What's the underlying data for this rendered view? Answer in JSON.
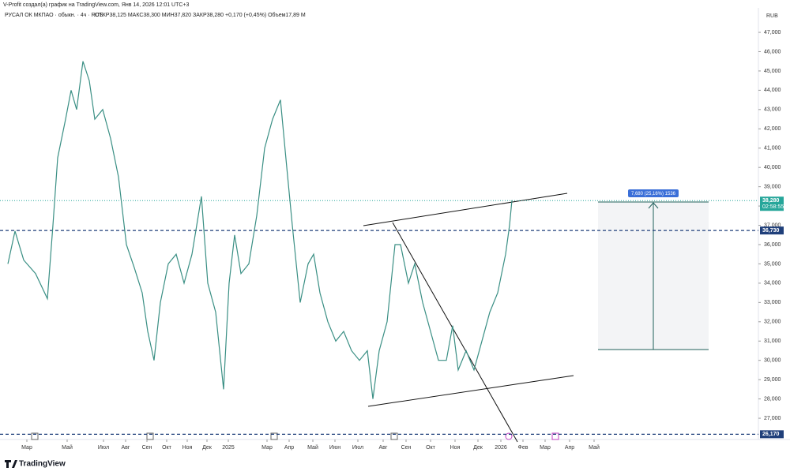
{
  "header": {
    "credit": "V-Profit создал(а) график на TradingView.com, Янв 14, 2026 12:01 UTC+3",
    "symbol": "РУСАЛ ОК МКПАО · обыкн. · 4ч · RUS",
    "ohlc": "ОТКР38,125  МАКС38,300  МИН37,820  ЗАКР38,280  +0,170 (+0,45%)  Объем17,89 M"
  },
  "chart_data": {
    "type": "line",
    "color": "#3a8f84",
    "currency": "RUB",
    "x": [
      5,
      14,
      25,
      40,
      55,
      62,
      68,
      78,
      85,
      92,
      100,
      108,
      115,
      125,
      135,
      145,
      155,
      165,
      175,
      182,
      190,
      198,
      208,
      218,
      228,
      238,
      250,
      258,
      268,
      278,
      285,
      292,
      300,
      310,
      320,
      330,
      340,
      350,
      358,
      365,
      375,
      385,
      392,
      400,
      410,
      420,
      430,
      440,
      450,
      460,
      467,
      475,
      485,
      495,
      502,
      512,
      520,
      530,
      540,
      550,
      560,
      568,
      575,
      585,
      595,
      605,
      615,
      625,
      635,
      640,
      643
    ],
    "values": [
      35000,
      36700,
      35200,
      34500,
      33200,
      37000,
      40500,
      42500,
      44000,
      43000,
      45500,
      44500,
      42500,
      43000,
      41500,
      39500,
      36000,
      34800,
      33500,
      31500,
      30000,
      33000,
      35000,
      35500,
      34000,
      35500,
      38500,
      34000,
      32500,
      28500,
      34000,
      36500,
      34500,
      35000,
      37500,
      41000,
      42500,
      43500,
      40000,
      37000,
      33000,
      35000,
      35500,
      33500,
      32000,
      31000,
      31500,
      30500,
      30000,
      30500,
      28000,
      30500,
      32000,
      36000,
      36000,
      34000,
      35000,
      33000,
      31500,
      30000,
      30000,
      31800,
      29500,
      30500,
      29500,
      31000,
      32500,
      33500,
      35500,
      37000,
      38300
    ],
    "xlim": [
      0,
      950
    ],
    "ylim": [
      25980,
      47860
    ],
    "yticks": [
      {
        "value": 27000,
        "label": "27,000"
      },
      {
        "value": 28000,
        "label": "28,000"
      },
      {
        "value": 29000,
        "label": "29,000"
      },
      {
        "value": 30000,
        "label": "30,000"
      },
      {
        "value": 31000,
        "label": "31,000"
      },
      {
        "value": 32000,
        "label": "32,000"
      },
      {
        "value": 33000,
        "label": "33,000"
      },
      {
        "value": 34000,
        "label": "34,000"
      },
      {
        "value": 35000,
        "label": "35,000"
      },
      {
        "value": 36000,
        "label": "36,000"
      },
      {
        "value": 37000,
        "label": "37,000"
      },
      {
        "value": 38000,
        "label": "38,000"
      },
      {
        "value": 39000,
        "label": "39,000"
      },
      {
        "value": 40000,
        "label": "40,000"
      },
      {
        "value": 41000,
        "label": "41,000"
      },
      {
        "value": 42000,
        "label": "42,000"
      },
      {
        "value": 43000,
        "label": "43,000"
      },
      {
        "value": 44000,
        "label": "44,000"
      },
      {
        "value": 45000,
        "label": "45,000"
      },
      {
        "value": 46000,
        "label": "46,000"
      },
      {
        "value": 47000,
        "label": "47,000"
      }
    ],
    "xticks": [
      {
        "value": 29,
        "label": "Мар"
      },
      {
        "value": 80,
        "label": "Май"
      },
      {
        "value": 126,
        "label": "Июл"
      },
      {
        "value": 154,
        "label": "Авг"
      },
      {
        "value": 181,
        "label": "Сен"
      },
      {
        "value": 206,
        "label": "Окт"
      },
      {
        "value": 232,
        "label": "Ноя"
      },
      {
        "value": 257,
        "label": "Дек"
      },
      {
        "value": 284,
        "label": "2025"
      },
      {
        "value": 333,
        "label": "Мар"
      },
      {
        "value": 361,
        "label": "Апр"
      },
      {
        "value": 391,
        "label": "Май"
      },
      {
        "value": 419,
        "label": "Июн"
      },
      {
        "value": 448,
        "label": "Июл"
      },
      {
        "value": 480,
        "label": "Авг"
      },
      {
        "value": 509,
        "label": "Сен"
      },
      {
        "value": 540,
        "label": "Окт"
      },
      {
        "value": 571,
        "label": "Ноя"
      },
      {
        "value": 600,
        "label": "Дек"
      },
      {
        "value": 629,
        "label": "2026"
      },
      {
        "value": 657,
        "label": "Фев"
      },
      {
        "value": 685,
        "label": "Мар"
      },
      {
        "value": 716,
        "label": "Апр"
      },
      {
        "value": 747,
        "label": "Май"
      }
    ],
    "price_lines": [
      {
        "value": 38280,
        "label": "38,280",
        "color": "#26a69a",
        "countdown": "02:58:55"
      },
      {
        "value": 36730,
        "label": "36,730",
        "color": "#1f3f7a"
      },
      {
        "value": 26170,
        "label": "26,170",
        "color": "#1f3f7a"
      }
    ],
    "measure": {
      "label": "7,680 (25,16%) 1536"
    }
  }
}
